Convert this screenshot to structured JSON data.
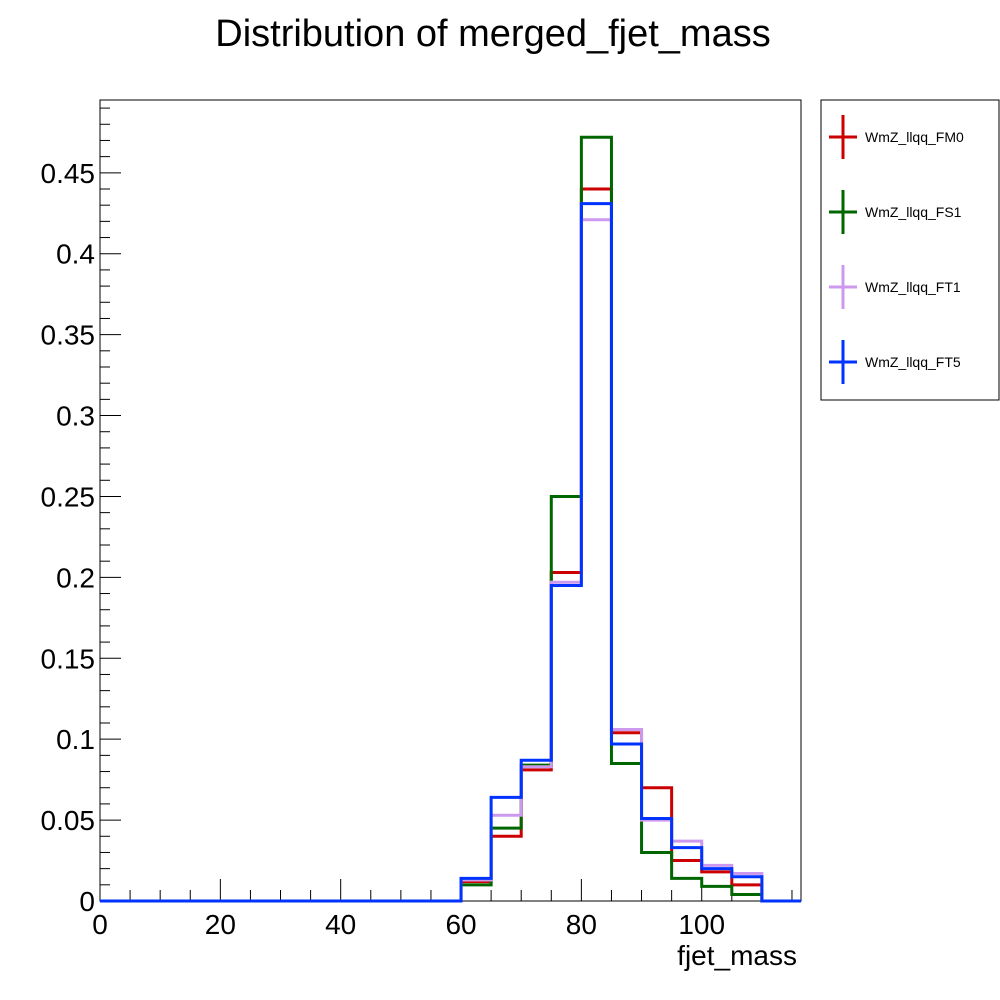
{
  "chart_data": {
    "type": "histogram-step",
    "title": "Distribution of merged_fjet_mass",
    "xlabel": "fjet_mass",
    "ylabel": "",
    "xlim": [
      0,
      116.5
    ],
    "ylim": [
      0,
      0.495
    ],
    "x_ticks": [
      0,
      20,
      40,
      60,
      80,
      100
    ],
    "x_tick_labels": [
      "0",
      "20",
      "40",
      "60",
      "80",
      "100"
    ],
    "y_ticks": [
      0,
      0.05,
      0.1,
      0.15,
      0.2,
      0.25,
      0.3,
      0.35,
      0.4,
      0.45
    ],
    "y_tick_labels": [
      "0",
      "0.05",
      "0.1",
      "0.15",
      "0.2",
      "0.25",
      "0.3",
      "0.35",
      "0.4",
      "0.45"
    ],
    "bin_edges": [
      0,
      5,
      10,
      15,
      20,
      25,
      30,
      35,
      40,
      45,
      50,
      55,
      60,
      65,
      70,
      75,
      80,
      85,
      90,
      95,
      100,
      105,
      110,
      116.5
    ],
    "legend_position": "outside-right",
    "series": [
      {
        "name": "WmZ_llqq_FM0",
        "color": "#cc0000",
        "values": [
          0,
          0,
          0,
          0,
          0,
          0,
          0,
          0,
          0,
          0,
          0,
          0,
          0.012,
          0.04,
          0.081,
          0.203,
          0.44,
          0.104,
          0.07,
          0.025,
          0.018,
          0.01,
          0,
          0
        ]
      },
      {
        "name": "WmZ_llqq_FS1",
        "color": "#006600",
        "values": [
          0,
          0,
          0,
          0,
          0,
          0,
          0,
          0,
          0,
          0,
          0,
          0,
          0.01,
          0.045,
          0.084,
          0.25,
          0.472,
          0.085,
          0.03,
          0.014,
          0.009,
          0.004,
          0,
          0
        ]
      },
      {
        "name": "WmZ_llqq_FT1",
        "color": "#cc99ee",
        "values": [
          0,
          0,
          0,
          0,
          0,
          0,
          0,
          0,
          0,
          0,
          0,
          0,
          0.013,
          0.053,
          0.083,
          0.197,
          0.421,
          0.106,
          0.05,
          0.037,
          0.022,
          0.017,
          0,
          0
        ]
      },
      {
        "name": "WmZ_llqq_FT5",
        "color": "#0033ff",
        "values": [
          0,
          0,
          0,
          0,
          0,
          0,
          0,
          0,
          0,
          0,
          0,
          0,
          0.014,
          0.064,
          0.087,
          0.195,
          0.431,
          0.097,
          0.051,
          0.033,
          0.02,
          0.015,
          0,
          0
        ]
      }
    ]
  }
}
